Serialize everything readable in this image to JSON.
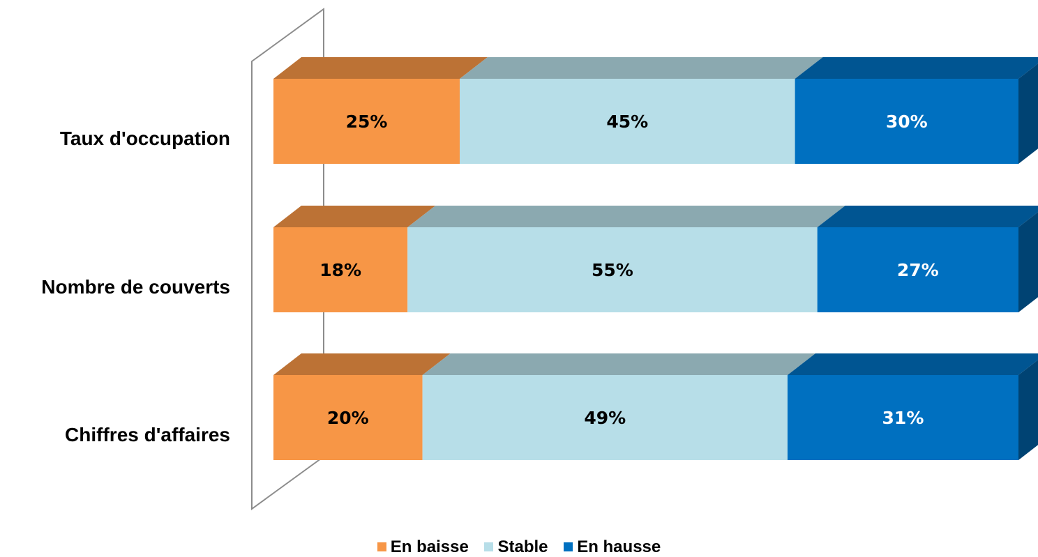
{
  "chart_data": {
    "type": "bar",
    "orientation": "horizontal",
    "stacked": true,
    "three_d": true,
    "value_format": "percent",
    "xlim": [
      0,
      100
    ],
    "categories": [
      "Taux d'occupation",
      "Nombre de couverts",
      "Chiffres d'affaires"
    ],
    "category_labels": [
      "Taux d'occupation",
      "Nombre de couverts",
      "Chiffres d'affaires"
    ],
    "series": [
      {
        "name": "En baisse",
        "values": [
          25,
          18,
          20
        ],
        "labels": [
          "25%",
          "18%",
          "20%"
        ],
        "color": "#F79646",
        "label_color": "#000000"
      },
      {
        "name": "Stable",
        "values": [
          45,
          55,
          49
        ],
        "labels": [
          "45%",
          "55%",
          "49%"
        ],
        "color": "#B7DEE8",
        "label_color": "#000000"
      },
      {
        "name": "En hausse",
        "values": [
          30,
          27,
          31
        ],
        "labels": [
          "30%",
          "27%",
          "31%"
        ],
        "color": "#0070C0",
        "label_color": "#FFFFFF"
      }
    ],
    "legend_position": "bottom",
    "grid": false
  },
  "legend": {
    "items": [
      {
        "label": "En baisse",
        "color": "#F79646"
      },
      {
        "label": "Stable",
        "color": "#B7DEE8"
      },
      {
        "label": "En hausse",
        "color": "#0070C0"
      }
    ]
  }
}
